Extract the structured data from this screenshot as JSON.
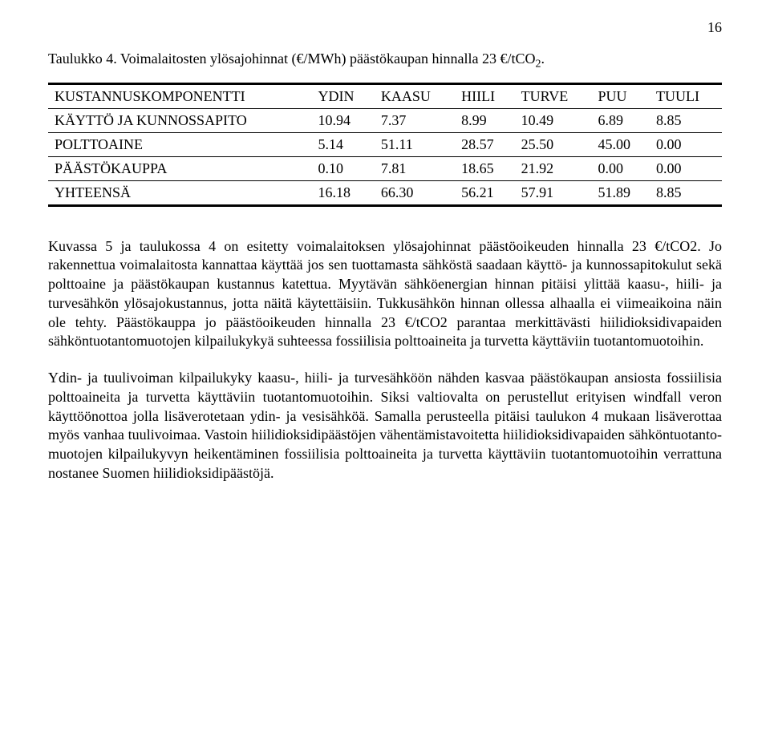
{
  "page_number": "16",
  "caption_prefix": "Taulukko 4. Voimalaitosten ylösajohinnat (€/MWh) päästökaupan hinnalla 23 €/tCO",
  "caption_sub": "2",
  "caption_suffix": ".",
  "table": {
    "columns": [
      "KUSTANNUSKOMPONENTTI",
      "YDIN",
      "KAASU",
      "HIILI",
      "TURVE",
      "PUU",
      "TUULI"
    ],
    "rows": [
      [
        "KÄYTTÖ JA KUNNOSSAPITO",
        "10.94",
        "7.37",
        "8.99",
        "10.49",
        "6.89",
        "8.85"
      ],
      [
        "POLTTOAINE",
        "5.14",
        "51.11",
        "28.57",
        "25.50",
        "45.00",
        "0.00"
      ],
      [
        "PÄÄSTÖKAUPPA",
        "0.10",
        "7.81",
        "18.65",
        "21.92",
        "0.00",
        "0.00"
      ],
      [
        "YHTEENSÄ",
        "16.18",
        "66.30",
        "56.21",
        "57.91",
        "51.89",
        "8.85"
      ]
    ]
  },
  "para1": "Kuvassa 5 ja taulukossa 4 on esitetty voimalaitoksen ylösajohinnat päästöoikeuden hinnalla 23 €/tCO2. Jo rakennettua voimalaitosta kannattaa käyttää jos sen tuottamasta sähköstä saadaan käyttö- ja kunnossapitokulut sekä polttoaine ja päästökaupan kustannus katettua. Myytävän sähköenergian hinnan pitäisi ylittää kaasu-, hiili- ja turvesähkön ylösajokustannus, jotta näitä käytettäisiin. Tukkusähkön hinnan ollessa alhaalla ei viimeaikoina näin ole tehty. Päästökauppa jo päästöoikeuden hinnalla 23 €/tCO2 parantaa merkittävästi hiilidioksidivapaiden sähköntuotantomuotojen kilpailukykyä suhteessa fossiilisia polttoaineita ja turvetta käyttäviin tuotantomuotoihin.",
  "para2": "Ydin- ja tuulivoiman kilpailukyky kaasu-, hiili- ja turvesähköön nähden kasvaa päästökaupan ansiosta fossiilisia polttoaineita ja turvetta käyttäviin tuotantomuotoihin. Siksi valtiovalta on perustellut erityisen windfall veron käyttöönottoa jolla lisäverotetaan ydin- ja vesisähköä. Samalla perusteella pitäisi taulukon 4 mukaan lisäverottaa myös vanhaa tuulivoimaa. Vastoin hiilidioksidipäästöjen vähentämistavoitetta hiilidioksidivapaiden sähköntuotanto­muotojen kilpailukyvyn heikentäminen fossiilisia polttoaineita ja turvetta käyttäviin tuotantomuotoihin verrattuna nostanee Suomen hiilidioksidipäästöjä."
}
